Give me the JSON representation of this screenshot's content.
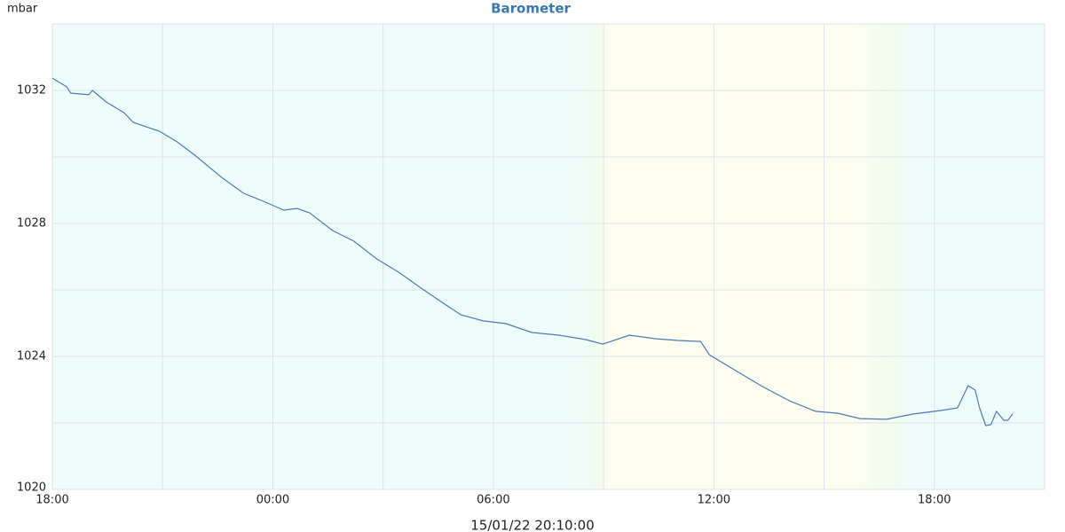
{
  "chart_data": {
    "type": "line",
    "title": "Barometer",
    "y_unit_label": "mbar",
    "x_caption": "15/01/22 20:10:00",
    "xlim": [
      0,
      27
    ],
    "ylim": [
      1020,
      1034
    ],
    "xticks": [
      {
        "value": 0,
        "label": "18:00"
      },
      {
        "value": 6,
        "label": "00:00"
      },
      {
        "value": 12,
        "label": "06:00"
      },
      {
        "value": 18,
        "label": "12:00"
      },
      {
        "value": 24,
        "label": "18:00"
      }
    ],
    "x_minor_ticks": [
      3,
      9,
      15,
      21
    ],
    "yticks": [
      1020,
      1024,
      1028,
      1032
    ],
    "y_minor_ticks": [
      1022,
      1026,
      1030
    ],
    "grid": true,
    "series": [
      {
        "color": "#4a7ab5",
        "x": [
          0,
          0.39,
          0.5,
          0.99,
          1.09,
          1.47,
          1.95,
          2.2,
          2.92,
          3.4,
          3.88,
          4.6,
          5.2,
          5.8,
          6.3,
          6.66,
          7.0,
          7.62,
          8.2,
          8.83,
          9.43,
          10.04,
          10.64,
          11.12,
          11.72,
          12.33,
          13.05,
          13.78,
          14.5,
          14.98,
          15.7,
          16.43,
          17.03,
          17.64,
          17.88,
          18.6,
          19.33,
          20.05,
          20.77,
          21.38,
          21.98,
          22.7,
          23.43,
          24.15,
          24.63,
          24.92,
          25.11,
          25.23,
          25.4,
          25.54,
          25.69,
          25.89,
          26.0,
          26.13
        ],
        "values": [
          1032.37,
          1032.11,
          1031.92,
          1031.87,
          1032.0,
          1031.65,
          1031.33,
          1031.04,
          1030.77,
          1030.45,
          1030.05,
          1029.39,
          1028.91,
          1028.64,
          1028.4,
          1028.45,
          1028.32,
          1027.79,
          1027.47,
          1026.93,
          1026.53,
          1026.05,
          1025.6,
          1025.25,
          1025.07,
          1024.99,
          1024.72,
          1024.64,
          1024.51,
          1024.37,
          1024.64,
          1024.53,
          1024.48,
          1024.45,
          1024.05,
          1023.57,
          1023.09,
          1022.67,
          1022.35,
          1022.29,
          1022.13,
          1022.11,
          1022.27,
          1022.37,
          1022.45,
          1023.12,
          1022.99,
          1022.45,
          1021.92,
          1021.95,
          1022.35,
          1022.08,
          1022.08,
          1022.27
        ]
      }
    ]
  }
}
